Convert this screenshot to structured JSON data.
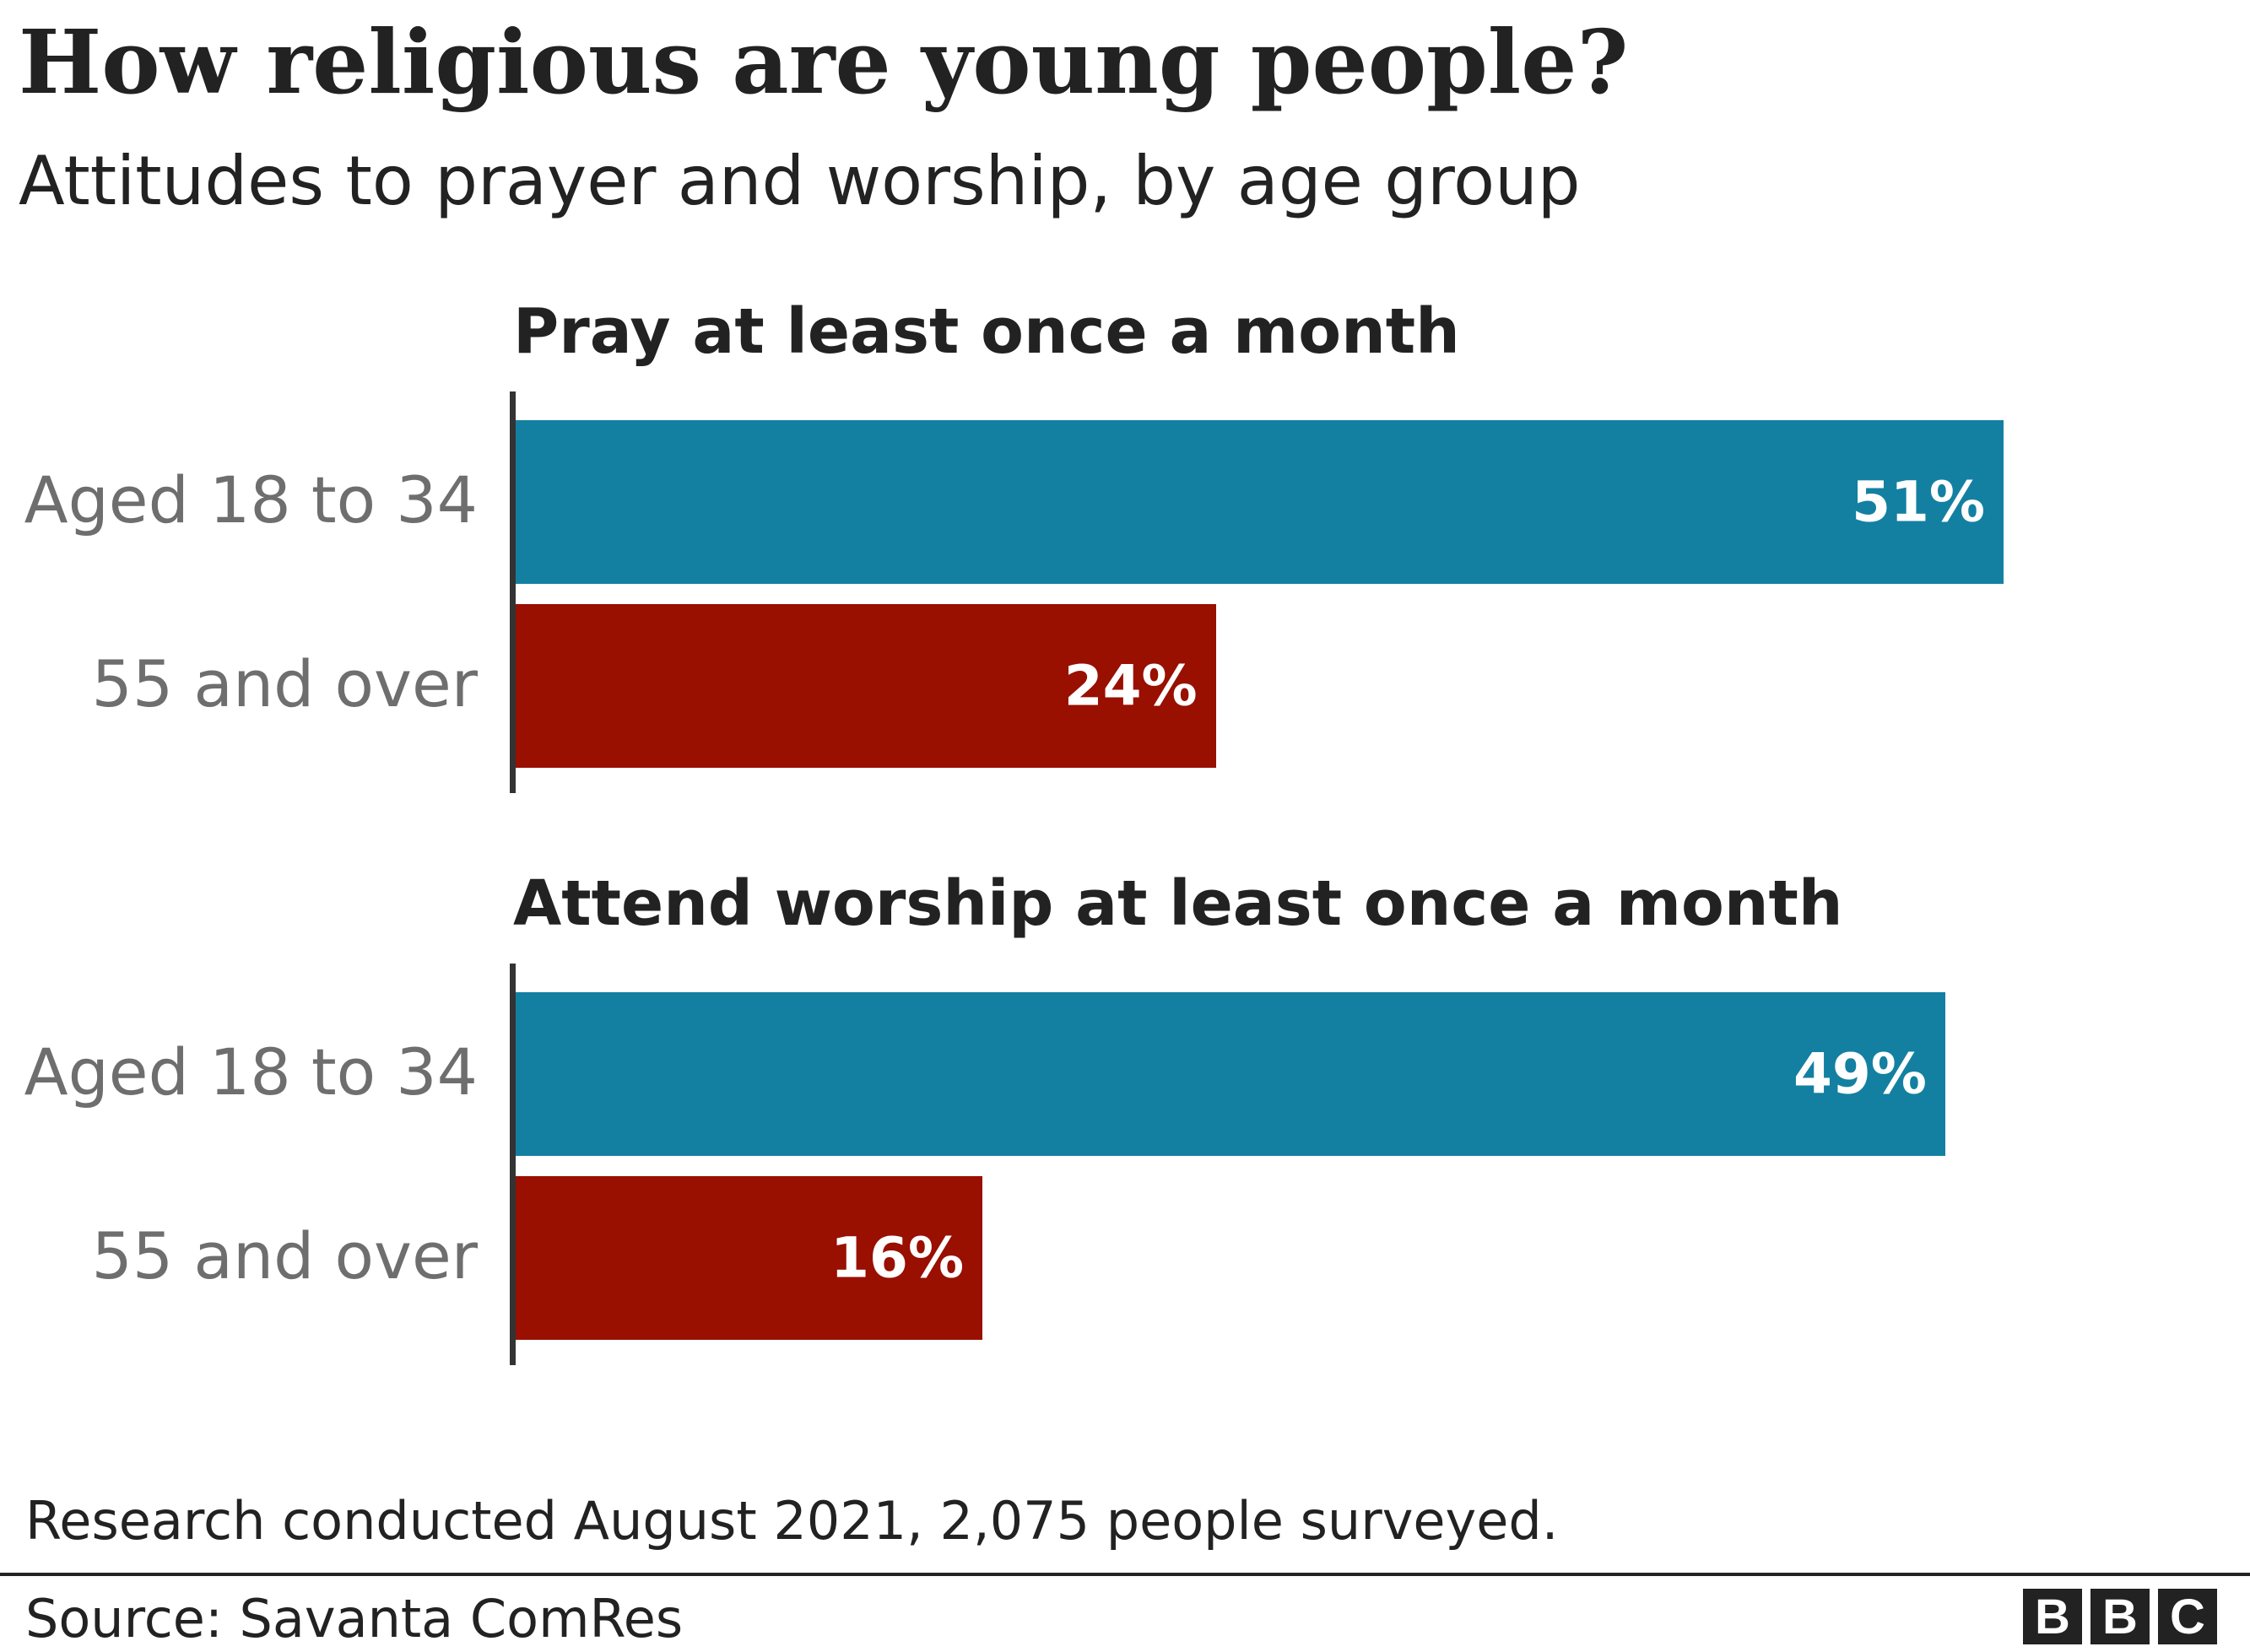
{
  "title": "How religious are young people?",
  "subtitle": "Attitudes to prayer and worship, by age group",
  "colors": {
    "young": "#1380A1",
    "older": "#990F00",
    "axis": "#333333"
  },
  "chart_data": [
    {
      "type": "bar",
      "orientation": "horizontal",
      "title": "Pray at least once a month",
      "categories": [
        "Aged 18 to 34",
        "55 and over"
      ],
      "values": [
        51,
        24
      ],
      "labels": [
        "51%",
        "24%"
      ],
      "xlim": [
        0,
        100
      ],
      "grid": false
    },
    {
      "type": "bar",
      "orientation": "horizontal",
      "title": "Attend worship at least once a month",
      "categories": [
        "Aged 18 to 34",
        "55 and over"
      ],
      "values": [
        49,
        16
      ],
      "labels": [
        "49%",
        "16%"
      ],
      "xlim": [
        0,
        100
      ],
      "grid": false
    }
  ],
  "note": "Research conducted August 2021, 2,075 people surveyed.",
  "source": "Source: Savanta ComRes",
  "logo": "BBC"
}
